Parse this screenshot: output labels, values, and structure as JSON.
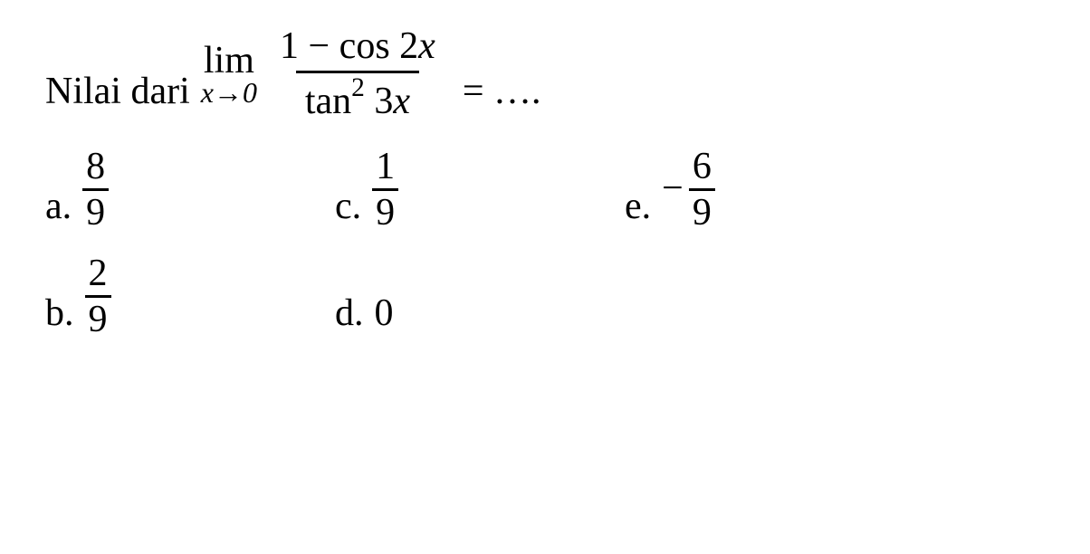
{
  "colors": {
    "text": "#000000",
    "background": "#ffffff",
    "fraction_bar": "#000000"
  },
  "typography": {
    "font_family": "Times New Roman",
    "base_fontsize_pt": 32,
    "sub_fontsize_pt": 24
  },
  "question": {
    "prefix": "Nilai dari",
    "limit_label": "lim",
    "limit_var": "x",
    "limit_arrow": "→",
    "limit_target": "0",
    "numerator_left": "1 − cos 2",
    "numerator_var": "x",
    "denominator_fn": "tan",
    "denominator_exp": "2",
    "denominator_coef": " 3",
    "denominator_var": "x",
    "equals": "=",
    "dots": " …."
  },
  "options": {
    "a": {
      "label": "a.",
      "num": "8",
      "den": "9"
    },
    "b": {
      "label": "b.",
      "num": "2",
      "den": "9"
    },
    "c": {
      "label": "c.",
      "num": "1",
      "den": "9"
    },
    "d": {
      "label": "d.",
      "value": "0"
    },
    "e": {
      "label": "e.",
      "sign": "−",
      "num": "6",
      "den": "9"
    }
  }
}
